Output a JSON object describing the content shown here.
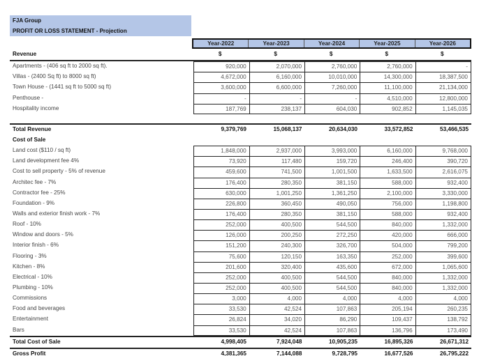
{
  "header": {
    "company": "FJA Group",
    "title": "PROFIT OR LOSS STATEMENT - Projection"
  },
  "years": [
    "Year-2022",
    "Year-2023",
    "Year-2024",
    "Year-2025",
    "Year-2026"
  ],
  "sections": [
    {
      "type": "heading",
      "label": "Revenue",
      "values": [
        "$",
        "$",
        "$",
        "$",
        "$"
      ]
    },
    {
      "type": "item",
      "label": "Apartments - (406 sq ft to 2000 sq ft).",
      "values": [
        "920,000",
        "2,070,000",
        "2,760,000",
        "2,760,000",
        "-"
      ]
    },
    {
      "type": "item",
      "label": "Villas - (2400 Sq ft) to 8000 sq ft)",
      "values": [
        "4,672,000",
        "6,160,000",
        "10,010,000",
        "14,300,000",
        "18,387,500"
      ]
    },
    {
      "type": "item",
      "label": "Town House - (1441 sq ft to 5000 sq ft)",
      "values": [
        "3,600,000",
        "6,600,000",
        "7,260,000",
        "11,100,000",
        "21,134,000"
      ]
    },
    {
      "type": "item",
      "label": "Penthouse -",
      "values": [
        "-",
        "-",
        "-",
        "4,510,000",
        "12,800,000"
      ]
    },
    {
      "type": "item",
      "label": "Hospitality income",
      "values": [
        "187,769",
        "238,137",
        "604,030",
        "902,852",
        "1,145,035"
      ]
    },
    {
      "type": "spacer"
    },
    {
      "type": "total",
      "label": "Total Revenue",
      "values": [
        "9,379,769",
        "15,068,137",
        "20,634,030",
        "33,572,852",
        "53,466,535"
      ]
    },
    {
      "type": "heading2",
      "label": "Cost of Sale",
      "values": []
    },
    {
      "type": "item",
      "label": "Land cost ($110 / sq ft)",
      "values": [
        "1,848,000",
        "2,937,000",
        "3,993,000",
        "6,160,000",
        "9,768,000"
      ]
    },
    {
      "type": "item",
      "label": "Land development fee 4%",
      "values": [
        "73,920",
        "117,480",
        "159,720",
        "246,400",
        "390,720"
      ]
    },
    {
      "type": "item",
      "label": "Cost to sell property - 5% of revenue",
      "values": [
        "459,600",
        "741,500",
        "1,001,500",
        "1,633,500",
        "2,616,075"
      ]
    },
    {
      "type": "item",
      "label": "Architec fee - 7%",
      "values": [
        "176,400",
        "280,350",
        "381,150",
        "588,000",
        "932,400"
      ]
    },
    {
      "type": "item",
      "label": "Contractor fee - 25%",
      "values": [
        "630,000",
        "1,001,250",
        "1,361,250",
        "2,100,000",
        "3,330,000"
      ]
    },
    {
      "type": "item",
      "label": "Foundation - 9%",
      "values": [
        "226,800",
        "360,450",
        "490,050",
        "756,000",
        "1,198,800"
      ]
    },
    {
      "type": "item",
      "label": "Walls and exterior finish work - 7%",
      "values": [
        "176,400",
        "280,350",
        "381,150",
        "588,000",
        "932,400"
      ]
    },
    {
      "type": "item",
      "label": "Roof - 10%",
      "values": [
        "252,000",
        "400,500",
        "544,500",
        "840,000",
        "1,332,000"
      ]
    },
    {
      "type": "item",
      "label": "Window and doors - 5%",
      "values": [
        "126,000",
        "200,250",
        "272,250",
        "420,000",
        "666,000"
      ]
    },
    {
      "type": "item",
      "label": "Interior finish - 6%",
      "values": [
        "151,200",
        "240,300",
        "326,700",
        "504,000",
        "799,200"
      ]
    },
    {
      "type": "item",
      "label": "Flooring - 3%",
      "values": [
        "75,600",
        "120,150",
        "163,350",
        "252,000",
        "399,600"
      ]
    },
    {
      "type": "item",
      "label": "Kitchen - 8%",
      "values": [
        "201,600",
        "320,400",
        "435,600",
        "672,000",
        "1,065,600"
      ]
    },
    {
      "type": "item",
      "label": "Electrical - 10%",
      "values": [
        "252,000",
        "400,500",
        "544,500",
        "840,000",
        "1,332,000"
      ]
    },
    {
      "type": "item",
      "label": "Plumbing - 10%",
      "values": [
        "252,000",
        "400,500",
        "544,500",
        "840,000",
        "1,332,000"
      ]
    },
    {
      "type": "item",
      "label": "Commissions",
      "values": [
        "3,000",
        "4,000",
        "4,000",
        "4,000",
        "4,000"
      ]
    },
    {
      "type": "item",
      "label": "Food and beverages",
      "values": [
        "33,530",
        "42,524",
        "107,863",
        "205,194",
        "260,235"
      ]
    },
    {
      "type": "item",
      "label": "Entertainment",
      "values": [
        "26,824",
        "34,020",
        "86,290",
        "109,437",
        "138,792"
      ]
    },
    {
      "type": "item",
      "label": "Bars",
      "values": [
        "33,530",
        "42,524",
        "107,863",
        "136,796",
        "173,490"
      ]
    },
    {
      "type": "total2",
      "label": "Total Cost of Sale",
      "values": [
        "4,998,405",
        "7,924,048",
        "10,905,235",
        "16,895,326",
        "26,671,312"
      ]
    },
    {
      "type": "total3",
      "label": "Gross Profit",
      "values": [
        "4,381,365",
        "7,144,088",
        "9,728,795",
        "16,677,526",
        "26,795,222"
      ]
    }
  ]
}
